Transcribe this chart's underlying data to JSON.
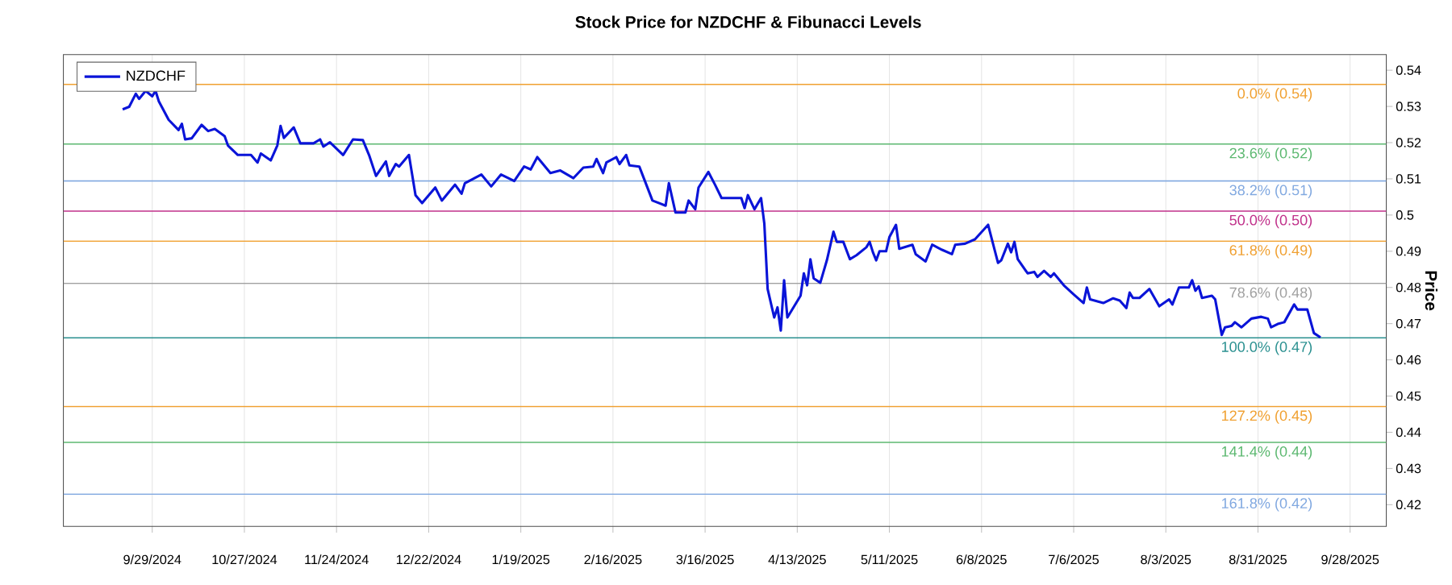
{
  "chart_data": {
    "type": "line",
    "title": "Stock Price for NZDCHF & Fibunacci Levels",
    "ylabel": "Price",
    "x": [
      "2024-09-20",
      "2024-09-22",
      "2024-09-24",
      "2024-09-25",
      "2024-09-27",
      "2024-09-29",
      "2024-09-30",
      "2024-10-01",
      "2024-10-04",
      "2024-10-07",
      "2024-10-08",
      "2024-10-09",
      "2024-10-11",
      "2024-10-14",
      "2024-10-16",
      "2024-10-18",
      "2024-10-21",
      "2024-10-22",
      "2024-10-25",
      "2024-10-29",
      "2024-10-31",
      "2024-11-01",
      "2024-11-04",
      "2024-11-06",
      "2024-11-07",
      "2024-11-08",
      "2024-11-11",
      "2024-11-13",
      "2024-11-17",
      "2024-11-19",
      "2024-11-20",
      "2024-11-22",
      "2024-11-26",
      "2024-11-29",
      "2024-12-02",
      "2024-12-04",
      "2024-12-06",
      "2024-12-09",
      "2024-12-10",
      "2024-12-12",
      "2024-12-13",
      "2024-12-16",
      "2024-12-18",
      "2024-12-20",
      "2024-12-24",
      "2024-12-26",
      "2024-12-30",
      "2025-01-01",
      "2025-01-02",
      "2025-01-07",
      "2025-01-10",
      "2025-01-13",
      "2025-01-17",
      "2025-01-20",
      "2025-01-22",
      "2025-01-24",
      "2025-01-28",
      "2025-01-31",
      "2025-02-04",
      "2025-02-07",
      "2025-02-10",
      "2025-02-11",
      "2025-02-13",
      "2025-02-14",
      "2025-02-17",
      "2025-02-18",
      "2025-02-20",
      "2025-02-21",
      "2025-02-24",
      "2025-02-28",
      "2025-03-04",
      "2025-03-05",
      "2025-03-07",
      "2025-03-10",
      "2025-03-11",
      "2025-03-13",
      "2025-03-14",
      "2025-03-17",
      "2025-03-19",
      "2025-03-21",
      "2025-03-27",
      "2025-03-28",
      "2025-03-29",
      "2025-03-31",
      "2025-04-02",
      "2025-04-03",
      "2025-04-04",
      "2025-04-06",
      "2025-04-07",
      "2025-04-08",
      "2025-04-09",
      "2025-04-10",
      "2025-04-14",
      "2025-04-15",
      "2025-04-16",
      "2025-04-17",
      "2025-04-18",
      "2025-04-20",
      "2025-04-22",
      "2025-04-24",
      "2025-04-25",
      "2025-04-27",
      "2025-04-29",
      "2025-05-01",
      "2025-05-04",
      "2025-05-05",
      "2025-05-06",
      "2025-05-07",
      "2025-05-08",
      "2025-05-10",
      "2025-05-11",
      "2025-05-13",
      "2025-05-14",
      "2025-05-18",
      "2025-05-19",
      "2025-05-22",
      "2025-05-24",
      "2025-05-27",
      "2025-05-30",
      "2025-05-31",
      "2025-06-03",
      "2025-06-06",
      "2025-06-10",
      "2025-06-13",
      "2025-06-14",
      "2025-06-16",
      "2025-06-17",
      "2025-06-18",
      "2025-06-19",
      "2025-06-22",
      "2025-06-24",
      "2025-06-25",
      "2025-06-27",
      "2025-06-29",
      "2025-06-30",
      "2025-07-03",
      "2025-07-06",
      "2025-07-09",
      "2025-07-10",
      "2025-07-11",
      "2025-07-15",
      "2025-07-18",
      "2025-07-20",
      "2025-07-22",
      "2025-07-23",
      "2025-07-24",
      "2025-07-26",
      "2025-07-29",
      "2025-08-01",
      "2025-08-04",
      "2025-08-05",
      "2025-08-07",
      "2025-08-10",
      "2025-08-11",
      "2025-08-12",
      "2025-08-13",
      "2025-08-14",
      "2025-08-17",
      "2025-08-18",
      "2025-08-20",
      "2025-08-21",
      "2025-08-23",
      "2025-08-24",
      "2025-08-26",
      "2025-08-29",
      "2025-09-01",
      "2025-09-03",
      "2025-09-04",
      "2025-09-06",
      "2025-09-08",
      "2025-09-11",
      "2025-09-12",
      "2025-09-15",
      "2025-09-17",
      "2025-09-19"
    ],
    "series": [
      {
        "name": "NZDCHF",
        "color": "#0a14d8",
        "values": [
          0.5292,
          0.5299,
          0.5335,
          0.5321,
          0.5343,
          0.5328,
          0.5343,
          0.5314,
          0.5263,
          0.5235,
          0.5252,
          0.5209,
          0.5212,
          0.5249,
          0.5232,
          0.5238,
          0.5218,
          0.5192,
          0.5166,
          0.5166,
          0.5145,
          0.517,
          0.5151,
          0.5192,
          0.5246,
          0.5213,
          0.5242,
          0.5198,
          0.5198,
          0.5209,
          0.5189,
          0.5201,
          0.5166,
          0.5209,
          0.5207,
          0.5163,
          0.5108,
          0.5148,
          0.5108,
          0.5141,
          0.5134,
          0.5166,
          0.5055,
          0.5033,
          0.5076,
          0.504,
          0.5084,
          0.5059,
          0.5088,
          0.5112,
          0.5079,
          0.5112,
          0.5094,
          0.5134,
          0.5126,
          0.516,
          0.5116,
          0.5123,
          0.5102,
          0.5131,
          0.5134,
          0.5155,
          0.5116,
          0.5145,
          0.516,
          0.5141,
          0.5166,
          0.5137,
          0.5134,
          0.504,
          0.5026,
          0.5088,
          0.5007,
          0.5007,
          0.504,
          0.5016,
          0.5076,
          0.5119,
          0.5084,
          0.5047,
          0.5047,
          0.5019,
          0.5055,
          0.5016,
          0.5047,
          0.4976,
          0.4796,
          0.4717,
          0.4745,
          0.4681,
          0.482,
          0.4717,
          0.4777,
          0.4839,
          0.4806,
          0.4878,
          0.4825,
          0.4813,
          0.4875,
          0.4954,
          0.4926,
          0.4926,
          0.4878,
          0.4889,
          0.4911,
          0.4926,
          0.4897,
          0.4875,
          0.49,
          0.49,
          0.4939,
          0.4973,
          0.4907,
          0.4918,
          0.4892,
          0.4872,
          0.4918,
          0.4904,
          0.4892,
          0.4918,
          0.4921,
          0.4933,
          0.4973,
          0.4868,
          0.4875,
          0.4921,
          0.4897,
          0.4926,
          0.4878,
          0.4839,
          0.4843,
          0.4829,
          0.4846,
          0.4829,
          0.4839,
          0.4806,
          0.4781,
          0.4757,
          0.48,
          0.4767,
          0.4757,
          0.477,
          0.4764,
          0.4743,
          0.4786,
          0.4771,
          0.4771,
          0.4796,
          0.4748,
          0.4767,
          0.4753,
          0.48,
          0.48,
          0.482,
          0.4791,
          0.4803,
          0.4771,
          0.4777,
          0.4767,
          0.4669,
          0.469,
          0.4694,
          0.4704,
          0.469,
          0.4714,
          0.4719,
          0.4714,
          0.469,
          0.4699,
          0.4704,
          0.4753,
          0.4739,
          0.4739,
          0.4674,
          0.4662
        ]
      }
    ],
    "xlim": [
      "2024-09-02",
      "2025-10-09"
    ],
    "xticks": [
      {
        "value": "2024-09-29",
        "label": "9/29/2024"
      },
      {
        "value": "2024-10-27",
        "label": "10/27/2024"
      },
      {
        "value": "2024-11-24",
        "label": "11/24/2024"
      },
      {
        "value": "2024-12-22",
        "label": "12/22/2024"
      },
      {
        "value": "2025-01-19",
        "label": "1/19/2025"
      },
      {
        "value": "2025-02-16",
        "label": "2/16/2025"
      },
      {
        "value": "2025-03-16",
        "label": "3/16/2025"
      },
      {
        "value": "2025-04-13",
        "label": "4/13/2025"
      },
      {
        "value": "2025-05-11",
        "label": "5/11/2025"
      },
      {
        "value": "2025-06-08",
        "label": "6/8/2025"
      },
      {
        "value": "2025-07-06",
        "label": "7/6/2025"
      },
      {
        "value": "2025-08-03",
        "label": "8/3/2025"
      },
      {
        "value": "2025-08-31",
        "label": "8/31/2025"
      },
      {
        "value": "2025-09-28",
        "label": "9/28/2025"
      }
    ],
    "ylim": [
      0.414,
      0.5443
    ],
    "yticks": [
      0.42,
      0.43,
      0.44,
      0.45,
      0.46,
      0.47,
      0.48,
      0.49,
      {
        "value": 0.5,
        "label": "0.5"
      },
      0.51,
      0.52,
      0.53,
      0.54
    ],
    "ref_lines": [
      {
        "axis": "y",
        "value": 0.5361,
        "label": "0.0% (0.54)",
        "color": "#f0a030"
      },
      {
        "axis": "y",
        "value": 0.5196,
        "label": "23.6% (0.52)",
        "color": "#5cb870"
      },
      {
        "axis": "y",
        "value": 0.5094,
        "label": "38.2% (0.51)",
        "color": "#80a8e0"
      },
      {
        "axis": "y",
        "value": 0.5011,
        "label": "50.0% (0.50)",
        "color": "#c0308a"
      },
      {
        "axis": "y",
        "value": 0.4928,
        "label": "61.8% (0.49)",
        "color": "#f0a030"
      },
      {
        "axis": "y",
        "value": 0.4811,
        "label": "78.6% (0.48)",
        "color": "#a0a0a0"
      },
      {
        "axis": "y",
        "value": 0.4661,
        "label": "100.0% (0.47)",
        "color": "#2a9090"
      },
      {
        "axis": "y",
        "value": 0.4471,
        "label": "127.2% (0.45)",
        "color": "#f0a030"
      },
      {
        "axis": "y",
        "value": 0.4372,
        "label": "141.4% (0.44)",
        "color": "#5cb870"
      },
      {
        "axis": "y",
        "value": 0.4229,
        "label": "161.8% (0.42)",
        "color": "#80a8e0"
      }
    ],
    "grid": "x",
    "legend": "top left",
    "marker": "none",
    "line_style": "solid"
  }
}
